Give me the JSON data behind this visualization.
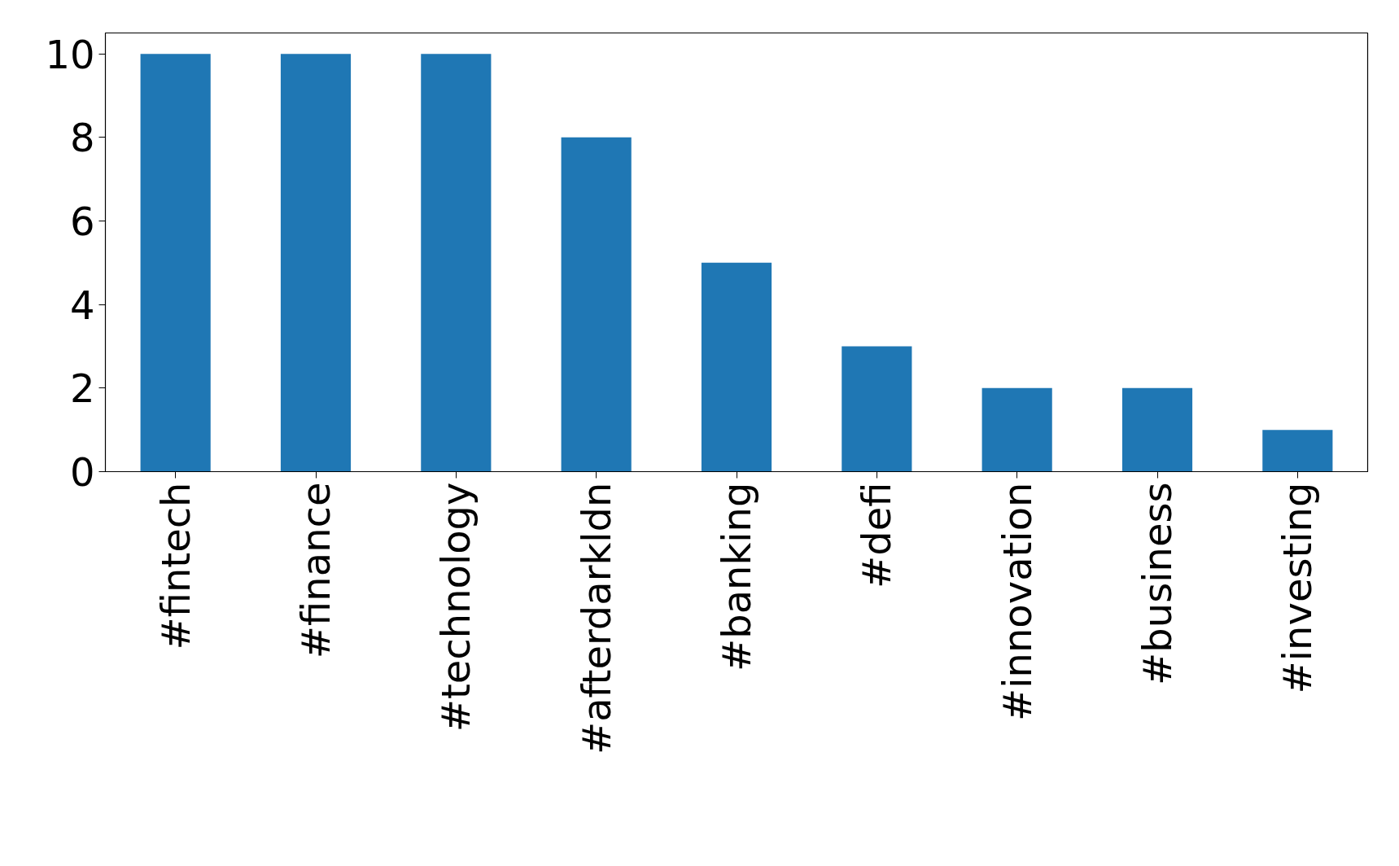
{
  "chart_data": {
    "type": "bar",
    "categories": [
      "#fintech",
      "#finance",
      "#technology",
      "#afterdarkldn",
      "#banking",
      "#defi",
      "#innovation",
      "#business",
      "#investing"
    ],
    "values": [
      10,
      10,
      10,
      8,
      5,
      3,
      2,
      2,
      1
    ],
    "color": "#1f77b4",
    "ylim": [
      0,
      10.5
    ],
    "yticks": [
      0,
      2,
      4,
      6,
      8,
      10
    ],
    "grid": false
  }
}
